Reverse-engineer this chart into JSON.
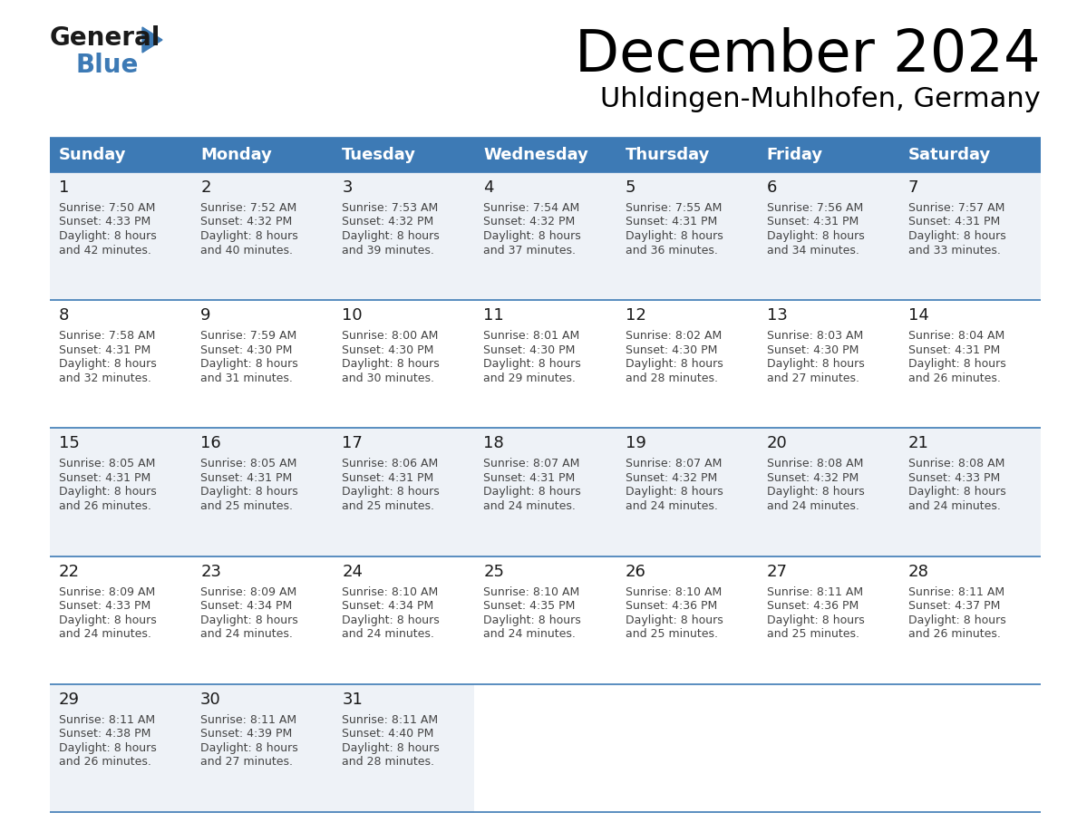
{
  "title": "December 2024",
  "subtitle": "Uhldingen-Muhlhofen, Germany",
  "header_color": "#3d7ab5",
  "days_of_week": [
    "Sunday",
    "Monday",
    "Tuesday",
    "Wednesday",
    "Thursday",
    "Friday",
    "Saturday"
  ],
  "weeks": [
    [
      {
        "day": "1",
        "sunrise": "7:50 AM",
        "sunset": "4:33 PM",
        "daylight_hours": 8,
        "daylight_min": 42
      },
      {
        "day": "2",
        "sunrise": "7:52 AM",
        "sunset": "4:32 PM",
        "daylight_hours": 8,
        "daylight_min": 40
      },
      {
        "day": "3",
        "sunrise": "7:53 AM",
        "sunset": "4:32 PM",
        "daylight_hours": 8,
        "daylight_min": 39
      },
      {
        "day": "4",
        "sunrise": "7:54 AM",
        "sunset": "4:32 PM",
        "daylight_hours": 8,
        "daylight_min": 37
      },
      {
        "day": "5",
        "sunrise": "7:55 AM",
        "sunset": "4:31 PM",
        "daylight_hours": 8,
        "daylight_min": 36
      },
      {
        "day": "6",
        "sunrise": "7:56 AM",
        "sunset": "4:31 PM",
        "daylight_hours": 8,
        "daylight_min": 34
      },
      {
        "day": "7",
        "sunrise": "7:57 AM",
        "sunset": "4:31 PM",
        "daylight_hours": 8,
        "daylight_min": 33
      }
    ],
    [
      {
        "day": "8",
        "sunrise": "7:58 AM",
        "sunset": "4:31 PM",
        "daylight_hours": 8,
        "daylight_min": 32
      },
      {
        "day": "9",
        "sunrise": "7:59 AM",
        "sunset": "4:30 PM",
        "daylight_hours": 8,
        "daylight_min": 31
      },
      {
        "day": "10",
        "sunrise": "8:00 AM",
        "sunset": "4:30 PM",
        "daylight_hours": 8,
        "daylight_min": 30
      },
      {
        "day": "11",
        "sunrise": "8:01 AM",
        "sunset": "4:30 PM",
        "daylight_hours": 8,
        "daylight_min": 29
      },
      {
        "day": "12",
        "sunrise": "8:02 AM",
        "sunset": "4:30 PM",
        "daylight_hours": 8,
        "daylight_min": 28
      },
      {
        "day": "13",
        "sunrise": "8:03 AM",
        "sunset": "4:30 PM",
        "daylight_hours": 8,
        "daylight_min": 27
      },
      {
        "day": "14",
        "sunrise": "8:04 AM",
        "sunset": "4:31 PM",
        "daylight_hours": 8,
        "daylight_min": 26
      }
    ],
    [
      {
        "day": "15",
        "sunrise": "8:05 AM",
        "sunset": "4:31 PM",
        "daylight_hours": 8,
        "daylight_min": 26
      },
      {
        "day": "16",
        "sunrise": "8:05 AM",
        "sunset": "4:31 PM",
        "daylight_hours": 8,
        "daylight_min": 25
      },
      {
        "day": "17",
        "sunrise": "8:06 AM",
        "sunset": "4:31 PM",
        "daylight_hours": 8,
        "daylight_min": 25
      },
      {
        "day": "18",
        "sunrise": "8:07 AM",
        "sunset": "4:31 PM",
        "daylight_hours": 8,
        "daylight_min": 24
      },
      {
        "day": "19",
        "sunrise": "8:07 AM",
        "sunset": "4:32 PM",
        "daylight_hours": 8,
        "daylight_min": 24
      },
      {
        "day": "20",
        "sunrise": "8:08 AM",
        "sunset": "4:32 PM",
        "daylight_hours": 8,
        "daylight_min": 24
      },
      {
        "day": "21",
        "sunrise": "8:08 AM",
        "sunset": "4:33 PM",
        "daylight_hours": 8,
        "daylight_min": 24
      }
    ],
    [
      {
        "day": "22",
        "sunrise": "8:09 AM",
        "sunset": "4:33 PM",
        "daylight_hours": 8,
        "daylight_min": 24
      },
      {
        "day": "23",
        "sunrise": "8:09 AM",
        "sunset": "4:34 PM",
        "daylight_hours": 8,
        "daylight_min": 24
      },
      {
        "day": "24",
        "sunrise": "8:10 AM",
        "sunset": "4:34 PM",
        "daylight_hours": 8,
        "daylight_min": 24
      },
      {
        "day": "25",
        "sunrise": "8:10 AM",
        "sunset": "4:35 PM",
        "daylight_hours": 8,
        "daylight_min": 24
      },
      {
        "day": "26",
        "sunrise": "8:10 AM",
        "sunset": "4:36 PM",
        "daylight_hours": 8,
        "daylight_min": 25
      },
      {
        "day": "27",
        "sunrise": "8:11 AM",
        "sunset": "4:36 PM",
        "daylight_hours": 8,
        "daylight_min": 25
      },
      {
        "day": "28",
        "sunrise": "8:11 AM",
        "sunset": "4:37 PM",
        "daylight_hours": 8,
        "daylight_min": 26
      }
    ],
    [
      {
        "day": "29",
        "sunrise": "8:11 AM",
        "sunset": "4:38 PM",
        "daylight_hours": 8,
        "daylight_min": 26
      },
      {
        "day": "30",
        "sunrise": "8:11 AM",
        "sunset": "4:39 PM",
        "daylight_hours": 8,
        "daylight_min": 27
      },
      {
        "day": "31",
        "sunrise": "8:11 AM",
        "sunset": "4:40 PM",
        "daylight_hours": 8,
        "daylight_min": 28
      },
      null,
      null,
      null,
      null
    ]
  ]
}
